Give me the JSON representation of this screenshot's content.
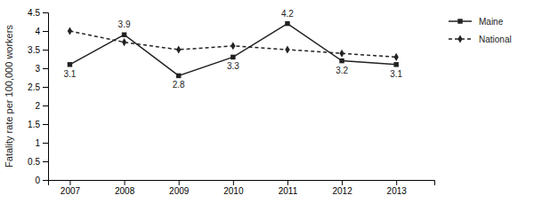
{
  "chart_data": {
    "type": "line",
    "y_label": "Fatality rate per 100,000 workers",
    "x": [
      2007,
      2008,
      2009,
      2010,
      2011,
      2012,
      2013
    ],
    "series": [
      {
        "name": "Maine",
        "color": "#222222",
        "marker": "square",
        "line_style": "solid",
        "data_labels": true,
        "values": [
          3.1,
          3.9,
          2.8,
          3.3,
          4.2,
          3.2,
          3.1
        ]
      },
      {
        "name": "National",
        "color": "#222222",
        "marker": "diamond",
        "line_style": "dashed",
        "values": [
          4.0,
          3.7,
          3.5,
          3.6,
          3.5,
          3.4,
          3.3
        ]
      }
    ],
    "xlim": [
      2006.6,
      2013.7
    ],
    "xticks": [
      2007,
      2008,
      2009,
      2010,
      2011,
      2012,
      2013
    ],
    "ylim": [
      0,
      4.5
    ],
    "yticks": [
      0,
      0.5,
      1,
      1.5,
      2,
      2.5,
      3,
      3.5,
      4,
      4.5
    ],
    "legend": "right"
  }
}
